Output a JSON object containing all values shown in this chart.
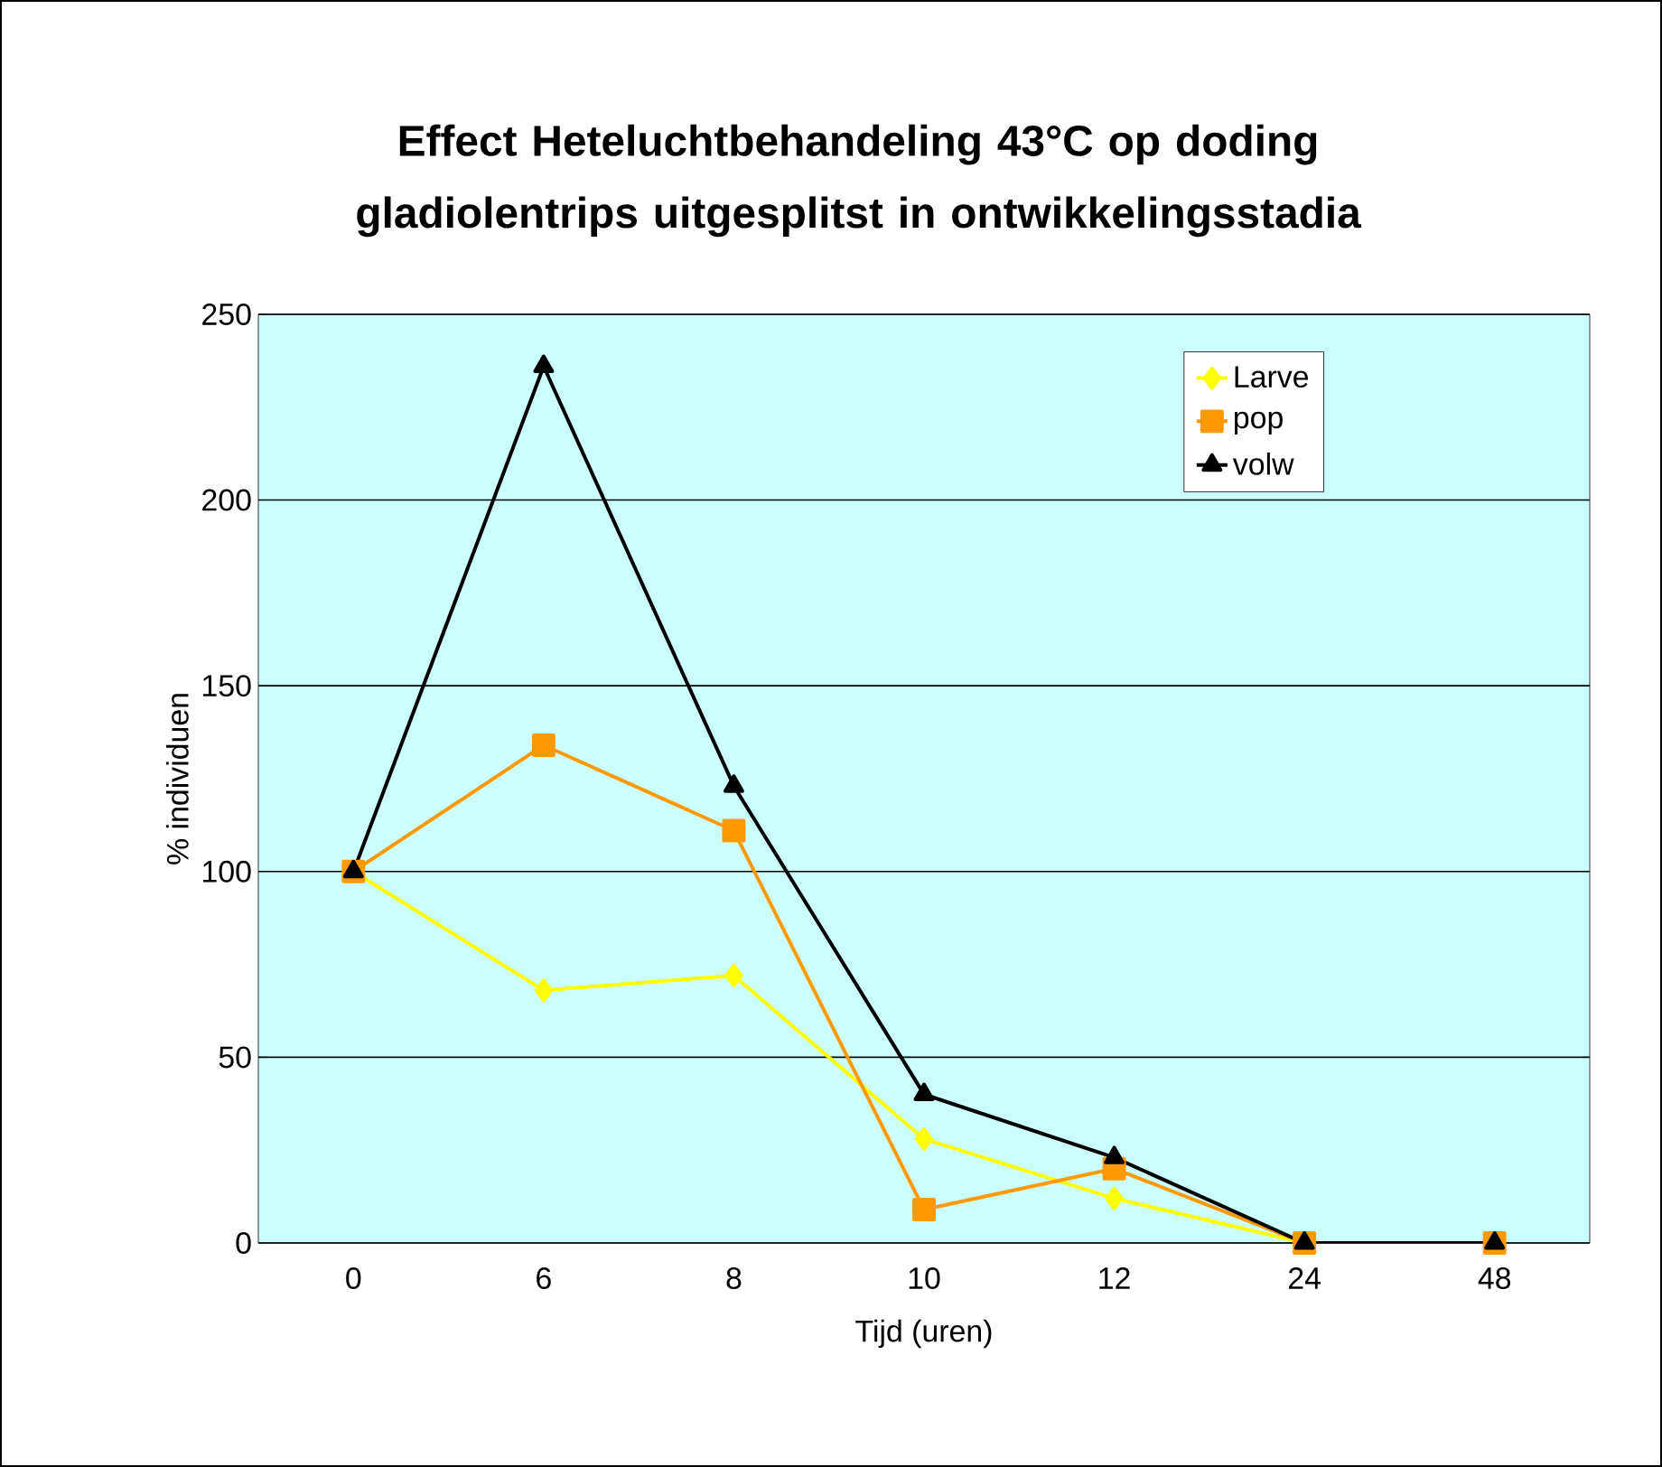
{
  "chart_data": {
    "type": "line",
    "title": "Effect Heteluchtbehandeling 43°C op doding gladiolentrips uitgesplitst in ontwikkelingsstadia",
    "xlabel": "Tijd (uren)",
    "ylabel": "% individuen",
    "categories": [
      "0",
      "6",
      "8",
      "10",
      "12",
      "24",
      "48"
    ],
    "series": [
      {
        "name": "Larve",
        "color": "#ffff00",
        "marker": "diamond",
        "values": [
          100,
          68,
          72,
          28,
          12,
          0,
          0
        ]
      },
      {
        "name": "pop",
        "color": "#ff9900",
        "marker": "square",
        "values": [
          100,
          134,
          111,
          9,
          20,
          0,
          0
        ]
      },
      {
        "name": "volw",
        "color": "#000000",
        "marker": "triangle",
        "values": [
          100,
          236,
          123,
          40,
          23,
          0,
          0
        ]
      }
    ],
    "ylim": [
      0,
      250
    ],
    "yticks": [
      0,
      50,
      100,
      150,
      200,
      250
    ],
    "grid": "y",
    "legend": "top right",
    "line_style": "solid"
  }
}
